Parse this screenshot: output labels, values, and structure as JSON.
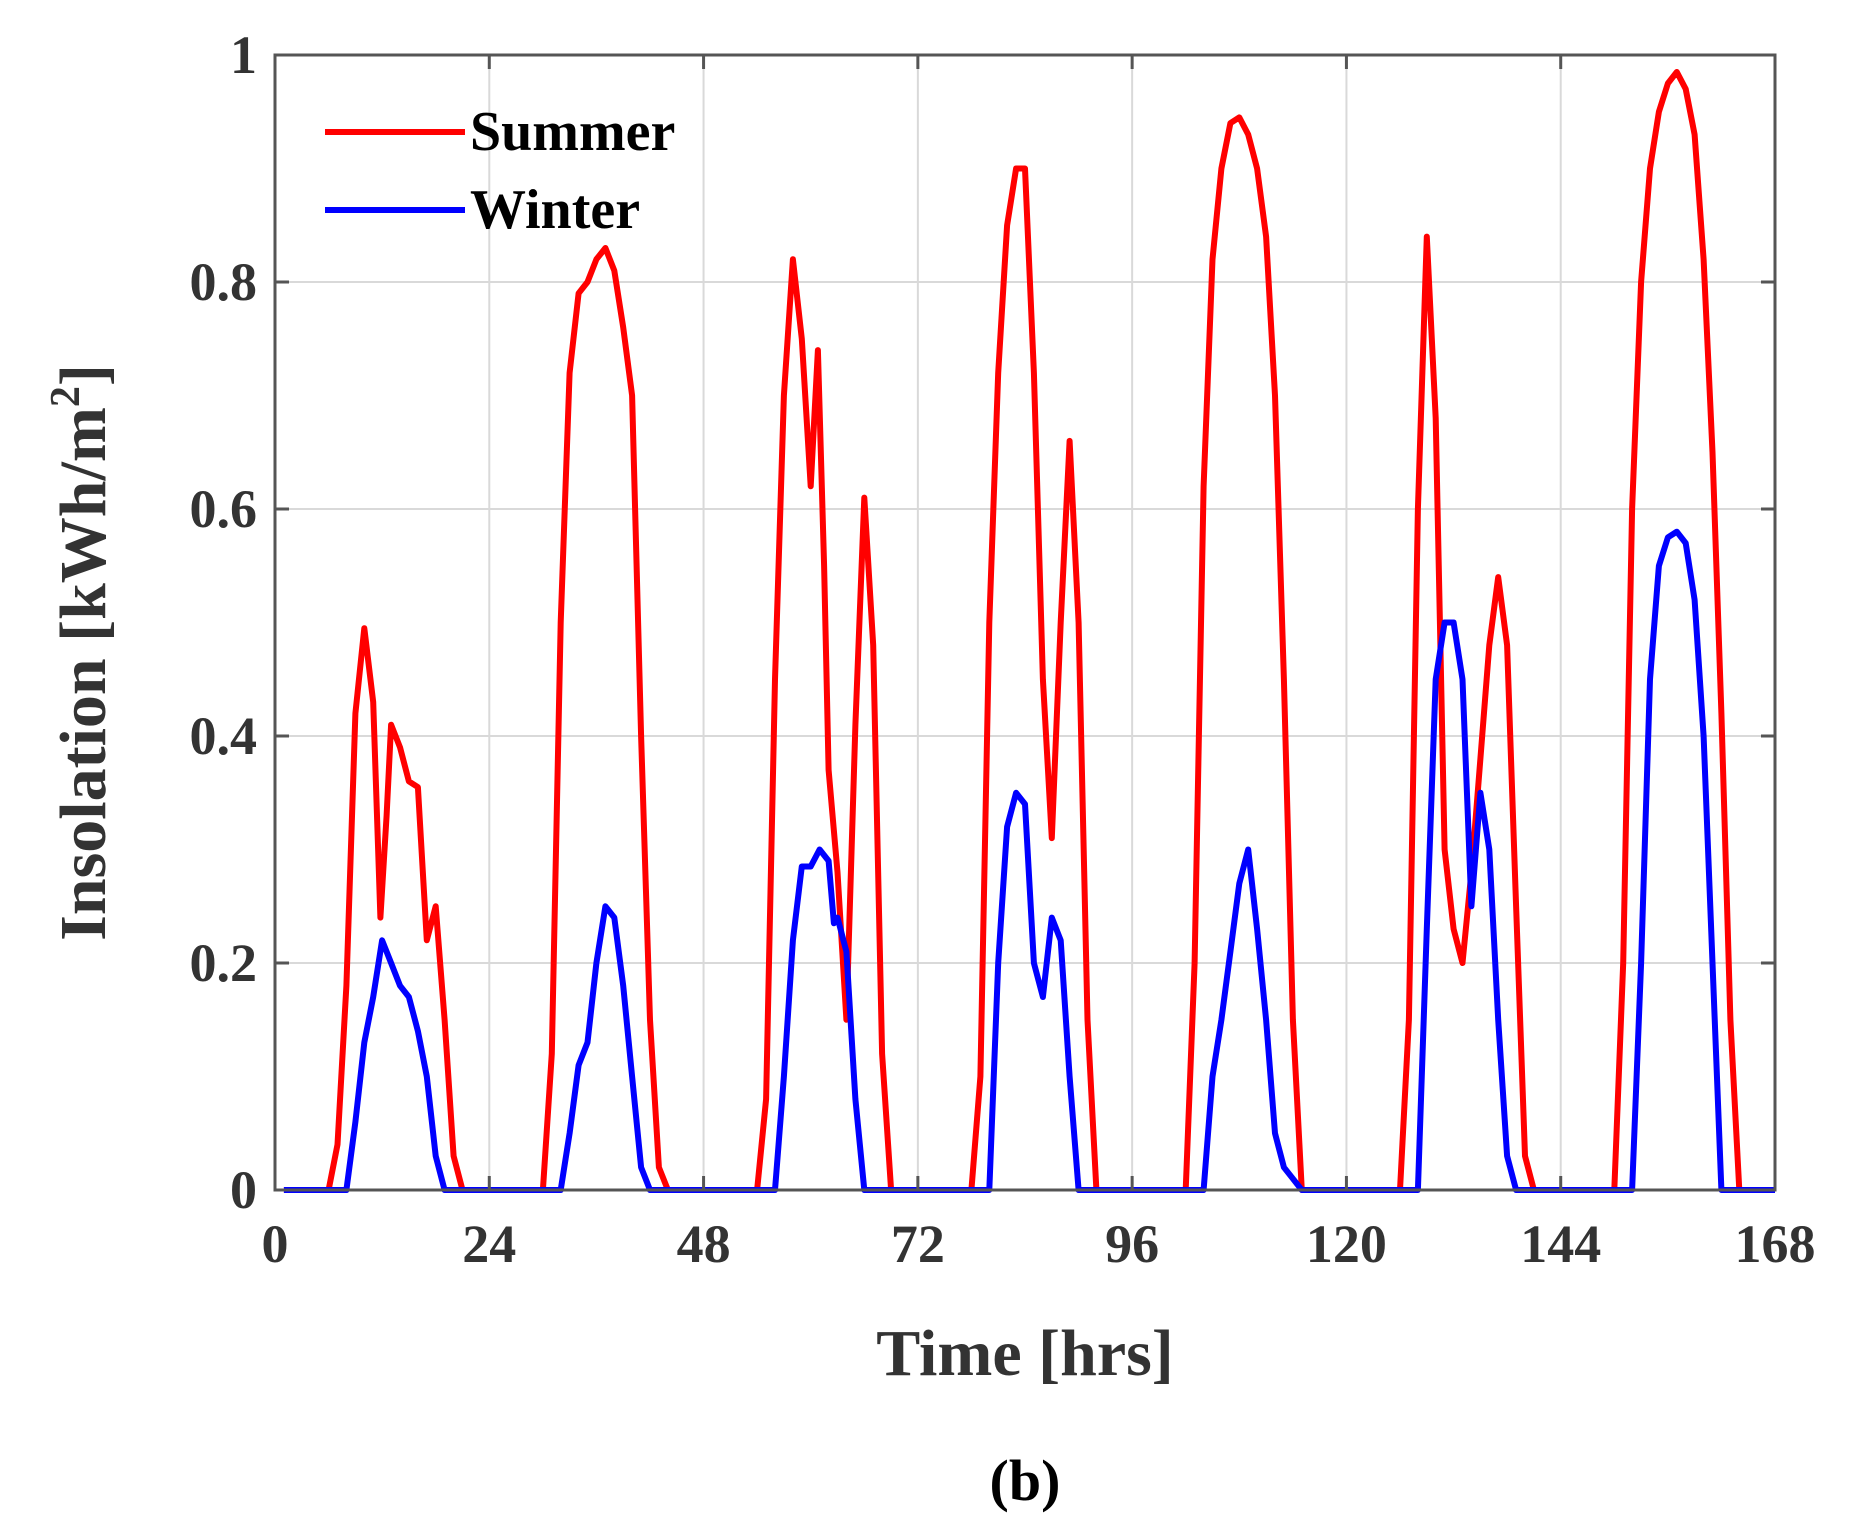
{
  "chart_data": {
    "type": "line",
    "title": "",
    "xlabel": "Time [hrs]",
    "ylabel_main": "Insolation [kWh/m",
    "ylabel_sup": "2",
    "ylabel_close": "]",
    "xlim": [
      0,
      168
    ],
    "ylim": [
      0,
      1
    ],
    "xticks": [
      0,
      24,
      48,
      72,
      96,
      120,
      144,
      168
    ],
    "yticks": [
      0,
      0.2,
      0.4,
      0.6,
      0.8,
      1
    ],
    "ytick_labels": [
      "0",
      "0.2",
      "0.4",
      "0.6",
      "0.8",
      "1"
    ],
    "grid": true,
    "legend_position": "top-left",
    "panel_label": "(b)",
    "series": [
      {
        "name": "Summer",
        "color": "#ff0000",
        "points": [
          [
            1,
            0
          ],
          [
            6,
            0
          ],
          [
            7,
            0.04
          ],
          [
            8,
            0.18
          ],
          [
            9,
            0.42
          ],
          [
            10,
            0.495
          ],
          [
            11,
            0.43
          ],
          [
            11.8,
            0.24
          ],
          [
            12.5,
            0.33
          ],
          [
            13,
            0.41
          ],
          [
            14,
            0.39
          ],
          [
            15,
            0.36
          ],
          [
            16,
            0.355
          ],
          [
            17,
            0.22
          ],
          [
            18,
            0.25
          ],
          [
            19,
            0.15
          ],
          [
            20,
            0.03
          ],
          [
            21,
            0
          ],
          [
            30,
            0
          ],
          [
            31,
            0.12
          ],
          [
            32,
            0.5
          ],
          [
            33,
            0.72
          ],
          [
            34,
            0.79
          ],
          [
            35,
            0.8
          ],
          [
            36,
            0.82
          ],
          [
            37,
            0.83
          ],
          [
            38,
            0.81
          ],
          [
            39,
            0.76
          ],
          [
            40,
            0.7
          ],
          [
            41,
            0.4
          ],
          [
            42,
            0.15
          ],
          [
            43,
            0.02
          ],
          [
            44,
            0
          ],
          [
            54,
            0
          ],
          [
            55,
            0.08
          ],
          [
            56,
            0.45
          ],
          [
            57,
            0.7
          ],
          [
            58,
            0.82
          ],
          [
            59,
            0.75
          ],
          [
            60,
            0.62
          ],
          [
            60.8,
            0.74
          ],
          [
            61.5,
            0.55
          ],
          [
            62,
            0.37
          ],
          [
            63,
            0.28
          ],
          [
            64,
            0.15
          ],
          [
            65,
            0.41
          ],
          [
            66,
            0.61
          ],
          [
            67,
            0.48
          ],
          [
            68,
            0.12
          ],
          [
            69,
            0
          ],
          [
            78,
            0
          ],
          [
            79,
            0.1
          ],
          [
            80,
            0.5
          ],
          [
            81,
            0.72
          ],
          [
            82,
            0.85
          ],
          [
            83,
            0.9
          ],
          [
            84,
            0.9
          ],
          [
            85,
            0.72
          ],
          [
            86,
            0.45
          ],
          [
            87,
            0.31
          ],
          [
            88,
            0.5
          ],
          [
            89,
            0.66
          ],
          [
            90,
            0.5
          ],
          [
            91,
            0.15
          ],
          [
            92,
            0
          ],
          [
            102,
            0
          ],
          [
            103,
            0.2
          ],
          [
            104,
            0.62
          ],
          [
            105,
            0.82
          ],
          [
            106,
            0.9
          ],
          [
            107,
            0.94
          ],
          [
            108,
            0.945
          ],
          [
            109,
            0.93
          ],
          [
            110,
            0.9
          ],
          [
            111,
            0.84
          ],
          [
            112,
            0.7
          ],
          [
            113,
            0.45
          ],
          [
            114,
            0.15
          ],
          [
            115,
            0
          ],
          [
            126,
            0
          ],
          [
            127,
            0.15
          ],
          [
            128,
            0.6
          ],
          [
            129,
            0.84
          ],
          [
            130,
            0.68
          ],
          [
            131,
            0.3
          ],
          [
            132,
            0.23
          ],
          [
            133,
            0.2
          ],
          [
            134,
            0.28
          ],
          [
            135,
            0.38
          ],
          [
            136,
            0.48
          ],
          [
            137,
            0.54
          ],
          [
            138,
            0.48
          ],
          [
            139,
            0.25
          ],
          [
            140,
            0.03
          ],
          [
            141,
            0
          ],
          [
            150,
            0
          ],
          [
            151,
            0.2
          ],
          [
            152,
            0.6
          ],
          [
            153,
            0.8
          ],
          [
            154,
            0.9
          ],
          [
            155,
            0.95
          ],
          [
            156,
            0.975
          ],
          [
            157,
            0.985
          ],
          [
            158,
            0.97
          ],
          [
            159,
            0.93
          ],
          [
            160,
            0.82
          ],
          [
            161,
            0.65
          ],
          [
            162,
            0.42
          ],
          [
            163,
            0.15
          ],
          [
            164,
            0
          ],
          [
            168,
            0
          ]
        ]
      },
      {
        "name": "Winter",
        "color": "#0000ff",
        "points": [
          [
            1,
            0
          ],
          [
            8,
            0
          ],
          [
            9,
            0.06
          ],
          [
            10,
            0.13
          ],
          [
            11,
            0.17
          ],
          [
            12,
            0.22
          ],
          [
            13,
            0.2
          ],
          [
            14,
            0.18
          ],
          [
            15,
            0.17
          ],
          [
            16,
            0.14
          ],
          [
            17,
            0.1
          ],
          [
            18,
            0.03
          ],
          [
            19,
            0
          ],
          [
            32,
            0
          ],
          [
            33,
            0.05
          ],
          [
            34,
            0.11
          ],
          [
            35,
            0.13
          ],
          [
            36,
            0.2
          ],
          [
            37,
            0.25
          ],
          [
            38,
            0.24
          ],
          [
            39,
            0.18
          ],
          [
            40,
            0.1
          ],
          [
            41,
            0.02
          ],
          [
            42,
            0
          ],
          [
            56,
            0
          ],
          [
            57,
            0.1
          ],
          [
            58,
            0.22
          ],
          [
            59,
            0.285
          ],
          [
            60,
            0.285
          ],
          [
            61,
            0.3
          ],
          [
            62,
            0.29
          ],
          [
            62.6,
            0.235
          ],
          [
            63,
            0.24
          ],
          [
            64,
            0.21
          ],
          [
            65,
            0.08
          ],
          [
            66,
            0
          ],
          [
            80,
            0
          ],
          [
            81,
            0.2
          ],
          [
            82,
            0.32
          ],
          [
            83,
            0.35
          ],
          [
            84,
            0.34
          ],
          [
            85,
            0.2
          ],
          [
            86,
            0.17
          ],
          [
            87,
            0.24
          ],
          [
            88,
            0.22
          ],
          [
            89,
            0.1
          ],
          [
            90,
            0
          ],
          [
            104,
            0
          ],
          [
            105,
            0.1
          ],
          [
            106,
            0.15
          ],
          [
            107,
            0.21
          ],
          [
            108,
            0.27
          ],
          [
            109,
            0.3
          ],
          [
            110,
            0.23
          ],
          [
            111,
            0.15
          ],
          [
            112,
            0.05
          ],
          [
            113,
            0.02
          ],
          [
            114,
            0.01
          ],
          [
            115,
            0
          ],
          [
            128,
            0
          ],
          [
            129,
            0.23
          ],
          [
            130,
            0.45
          ],
          [
            131,
            0.5
          ],
          [
            132,
            0.5
          ],
          [
            133,
            0.45
          ],
          [
            134,
            0.25
          ],
          [
            135,
            0.35
          ],
          [
            136,
            0.3
          ],
          [
            137,
            0.15
          ],
          [
            138,
            0.03
          ],
          [
            139,
            0
          ],
          [
            152,
            0
          ],
          [
            153,
            0.2
          ],
          [
            154,
            0.45
          ],
          [
            155,
            0.55
          ],
          [
            156,
            0.575
          ],
          [
            157,
            0.58
          ],
          [
            158,
            0.57
          ],
          [
            159,
            0.52
          ],
          [
            160,
            0.4
          ],
          [
            161,
            0.2
          ],
          [
            162,
            0
          ],
          [
            168,
            0
          ]
        ]
      }
    ]
  }
}
